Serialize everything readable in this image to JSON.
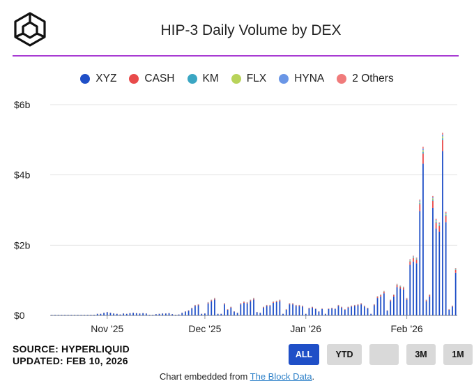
{
  "title": "HIP-3 Daily Volume by DEX",
  "legend": [
    {
      "name": "XYZ",
      "color": "#1f4fc7"
    },
    {
      "name": "CASH",
      "color": "#e84a4a"
    },
    {
      "name": "KM",
      "color": "#3aa6c3"
    },
    {
      "name": "FLX",
      "color": "#b8d35a"
    },
    {
      "name": "HYNA",
      "color": "#6a96e6"
    },
    {
      "name": "2 Others",
      "color": "#f07b7b"
    }
  ],
  "source": {
    "source_text": "SOURCE: HYPERLIQUID",
    "updated_text": "UPDATED: FEB 10, 2026"
  },
  "range_buttons": [
    {
      "label": "ALL",
      "active": true
    },
    {
      "label": "YTD",
      "active": false
    },
    {
      "label": "",
      "active": false
    },
    {
      "label": "3M",
      "active": false
    },
    {
      "label": "1M",
      "active": false
    }
  ],
  "embed": {
    "prefix": "Chart embedded from ",
    "link_text": "The Block Data",
    "suffix": "."
  },
  "chart_data": {
    "type": "bar",
    "stacked": true,
    "title": "HIP-3 Daily Volume by DEX",
    "xlabel": "",
    "ylabel": "",
    "ylim": [
      0,
      6
    ],
    "y_unit": "billions USD",
    "y_ticks": [
      0,
      2,
      4,
      6
    ],
    "y_tick_labels": [
      "$0",
      "$2b",
      "$4b",
      "$6b"
    ],
    "x_tick_labels": [
      "Nov '25",
      "Dec '25",
      "Jan '26",
      "Feb '26"
    ],
    "x_tick_positions": [
      17.5,
      47.5,
      78.5,
      109.5
    ],
    "bar_count": 125,
    "series_names": [
      "XYZ",
      "CASH",
      "KM",
      "FLX",
      "HYNA",
      "2 Others"
    ],
    "totals": [
      0.01,
      0.01,
      0.01,
      0.01,
      0.01,
      0.01,
      0.01,
      0.01,
      0.01,
      0.01,
      0.01,
      0.01,
      0.02,
      0.02,
      0.05,
      0.05,
      0.08,
      0.1,
      0.08,
      0.06,
      0.05,
      0.03,
      0.06,
      0.05,
      0.07,
      0.08,
      0.07,
      0.06,
      0.07,
      0.06,
      0.02,
      0.02,
      0.04,
      0.05,
      0.06,
      0.06,
      0.07,
      0.04,
      0.02,
      0.03,
      0.08,
      0.12,
      0.15,
      0.22,
      0.3,
      0.32,
      0.05,
      0.06,
      0.38,
      0.45,
      0.5,
      0.05,
      0.05,
      0.35,
      0.18,
      0.25,
      0.12,
      0.08,
      0.35,
      0.4,
      0.38,
      0.45,
      0.5,
      0.1,
      0.08,
      0.25,
      0.3,
      0.3,
      0.4,
      0.42,
      0.45,
      0.05,
      0.18,
      0.35,
      0.35,
      0.3,
      0.3,
      0.28,
      0.05,
      0.22,
      0.25,
      0.2,
      0.12,
      0.2,
      0.05,
      0.2,
      0.22,
      0.2,
      0.3,
      0.25,
      0.18,
      0.25,
      0.28,
      0.3,
      0.32,
      0.35,
      0.28,
      0.22,
      0.05,
      0.32,
      0.55,
      0.6,
      0.7,
      0.15,
      0.45,
      0.6,
      0.9,
      0.85,
      0.82,
      0.5,
      1.6,
      1.7,
      1.65,
      3.3,
      4.8,
      0.45,
      0.6,
      3.4,
      2.75,
      2.65,
      5.2,
      2.95,
      0.18,
      0.28,
      1.35
    ],
    "annotation_note": "Each stacked bar: XYZ dominant, thin CASH/KM/FLX/HYNA/2 Others slices on top"
  }
}
